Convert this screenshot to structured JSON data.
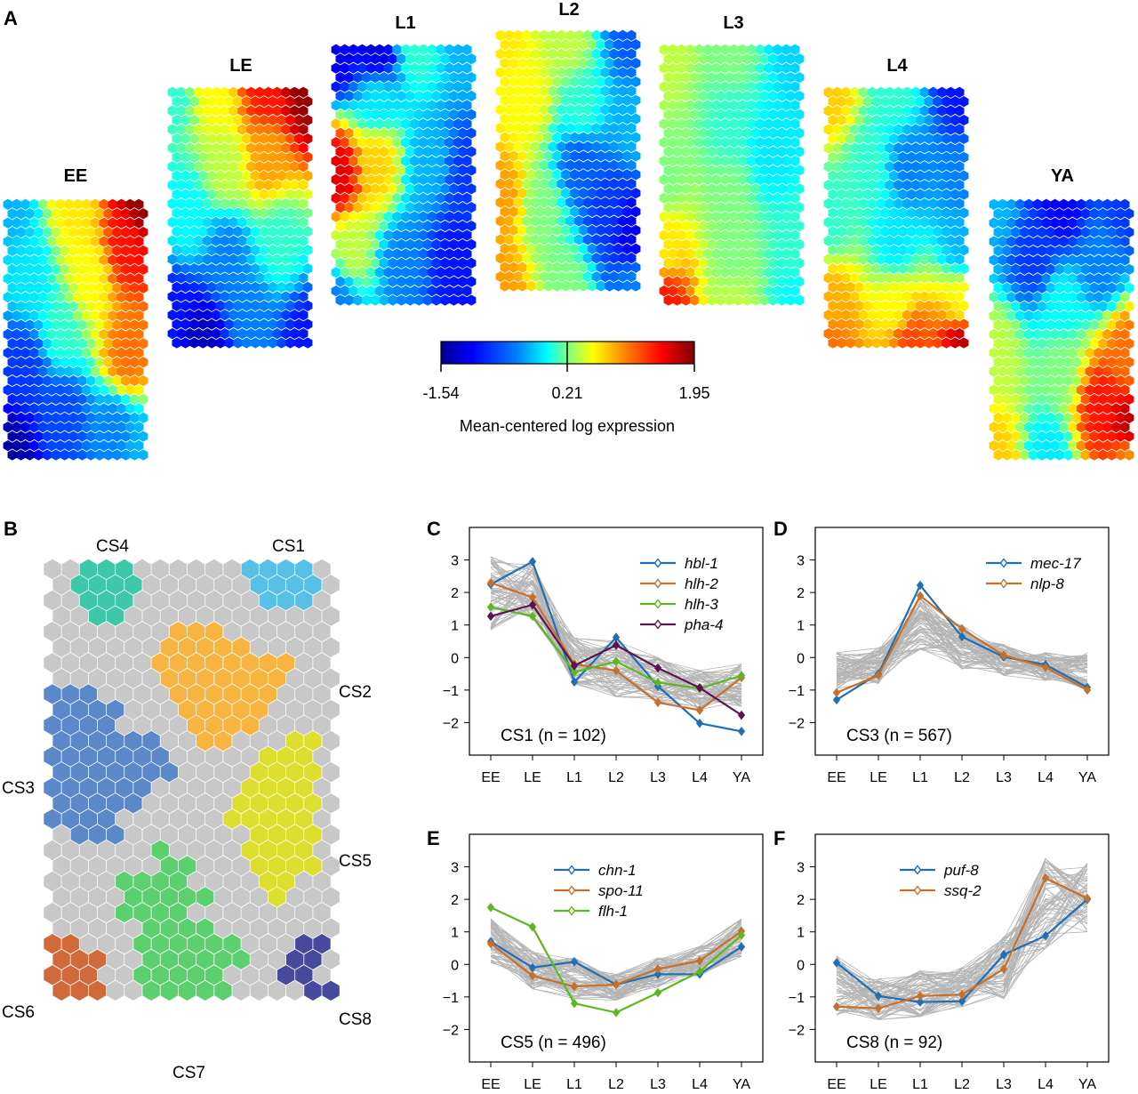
{
  "panels": {
    "A": "A",
    "B": "B",
    "C": "C",
    "D": "D",
    "E": "E",
    "F": "F"
  },
  "panel_a": {
    "stages": [
      "EE",
      "LE",
      "L1",
      "L2",
      "L3",
      "L4",
      "YA"
    ],
    "colorbar": {
      "min_label": "-1.54",
      "mid_label": "0.21",
      "max_label": "1.95",
      "min": -1.54,
      "mid": 0.21,
      "max": 1.95,
      "title": "Mean-centered log expression",
      "colormap": [
        "#00008f",
        "#0000ff",
        "#0080ff",
        "#00ffff",
        "#80ff80",
        "#ffff00",
        "#ff8000",
        "#ff0000",
        "#800000"
      ]
    }
  },
  "panel_b": {
    "labels": {
      "CS1": "CS1",
      "CS2": "CS2",
      "CS3": "CS3",
      "CS4": "CS4",
      "CS5": "CS5",
      "CS6": "CS6",
      "CS7": "CS7",
      "CS8": "CS8"
    },
    "colors": {
      "background": "#c8c8c8",
      "CS1": "#58c0e6",
      "CS2": "#f8b440",
      "CS3": "#5b88c8",
      "CS4": "#3ec8a8",
      "CS5": "#dede30",
      "CS6": "#d06a3a",
      "CS7": "#5cd06e",
      "CS8": "#464a9c"
    }
  },
  "chart_data": [
    {
      "id": "C",
      "type": "line",
      "categories": [
        "EE",
        "LE",
        "L1",
        "L2",
        "L3",
        "L4",
        "YA"
      ],
      "ylim": [
        -3,
        4
      ],
      "yticks": [
        -2,
        -1,
        0,
        1,
        2,
        3
      ],
      "annotation": "CS1 (n = 102)",
      "legend_position": "top-right",
      "background_band": {
        "upper": [
          3.1,
          2.9,
          0.6,
          0.5,
          0.0,
          -0.4,
          -0.2
        ],
        "lower": [
          0.85,
          1.2,
          -0.8,
          -1.2,
          -1.35,
          -1.6,
          -1.5
        ]
      },
      "series": [
        {
          "name": "hbl-1",
          "color": "#1f6fb4",
          "values": [
            2.25,
            2.95,
            -0.75,
            0.62,
            -0.88,
            -2.02,
            -2.27
          ]
        },
        {
          "name": "hlh-2",
          "color": "#c8702a",
          "values": [
            2.3,
            1.85,
            -0.2,
            -0.4,
            -1.38,
            -1.62,
            -0.62
          ]
        },
        {
          "name": "hlh-3",
          "color": "#5cb820",
          "values": [
            1.55,
            1.27,
            -0.45,
            -0.12,
            -0.77,
            -0.95,
            -0.55
          ]
        },
        {
          "name": "pha-4",
          "color": "#5a1450",
          "values": [
            1.27,
            1.62,
            -0.25,
            0.38,
            -0.32,
            -0.93,
            -1.77
          ]
        }
      ]
    },
    {
      "id": "D",
      "type": "line",
      "categories": [
        "EE",
        "LE",
        "L1",
        "L2",
        "L3",
        "L4",
        "YA"
      ],
      "ylim": [
        -3,
        4
      ],
      "yticks": [
        -2,
        -1,
        0,
        1,
        2,
        3
      ],
      "annotation": "CS3 (n = 567)",
      "legend_position": "top-right",
      "background_band": {
        "upper": [
          0.15,
          0.3,
          1.85,
          1.0,
          0.4,
          0.15,
          0.15
        ],
        "lower": [
          -1.0,
          -0.8,
          0.25,
          -0.35,
          -0.55,
          -0.7,
          -1.0
        ]
      },
      "series": [
        {
          "name": "mec-17",
          "color": "#1f6fb4",
          "values": [
            -1.3,
            -0.5,
            2.22,
            0.64,
            0.02,
            -0.22,
            -0.92
          ]
        },
        {
          "name": "nlp-8",
          "color": "#c8702a",
          "values": [
            -1.08,
            -0.55,
            1.9,
            0.88,
            0.07,
            -0.3,
            -1.0
          ]
        }
      ]
    },
    {
      "id": "E",
      "type": "line",
      "categories": [
        "EE",
        "LE",
        "L1",
        "L2",
        "L3",
        "L4",
        "YA"
      ],
      "ylim": [
        -3,
        4
      ],
      "yticks": [
        -2,
        -1,
        0,
        1,
        2,
        3
      ],
      "annotation": "CS5 (n = 496)",
      "legend_position": "top-center",
      "background_band": {
        "upper": [
          1.4,
          0.4,
          0.2,
          -0.3,
          0.2,
          0.55,
          1.4
        ],
        "lower": [
          0.05,
          -0.75,
          -1.05,
          -1.1,
          -0.7,
          -0.35,
          0.25
        ]
      },
      "series": [
        {
          "name": "chn-1",
          "color": "#1f6fb4",
          "values": [
            0.7,
            -0.1,
            0.08,
            -0.62,
            -0.3,
            -0.3,
            0.54
          ]
        },
        {
          "name": "spo-11",
          "color": "#c8702a",
          "values": [
            0.64,
            -0.35,
            -0.68,
            -0.62,
            -0.14,
            0.11,
            1.02
          ]
        },
        {
          "name": "flh-1",
          "color": "#5cb820",
          "values": [
            1.75,
            1.15,
            -1.2,
            -1.48,
            -0.87,
            -0.22,
            0.9
          ]
        }
      ]
    },
    {
      "id": "F",
      "type": "line",
      "categories": [
        "EE",
        "LE",
        "L1",
        "L2",
        "L3",
        "L4",
        "YA"
      ],
      "ylim": [
        -3,
        4
      ],
      "yticks": [
        -2,
        -1,
        0,
        1,
        2,
        3
      ],
      "annotation": "CS8 (n = 92)",
      "legend_position": "top-center",
      "background_band": {
        "upper": [
          0.25,
          -0.45,
          -0.2,
          -0.1,
          0.85,
          3.25,
          3.1
        ],
        "lower": [
          -1.55,
          -1.7,
          -1.6,
          -1.3,
          -1.05,
          0.5,
          1.0
        ]
      },
      "series": [
        {
          "name": "puf-8",
          "color": "#1f6fb4",
          "values": [
            0.05,
            -0.97,
            -1.16,
            -1.13,
            0.3,
            0.88,
            2.0
          ]
        },
        {
          "name": "ssq-2",
          "color": "#c8702a",
          "values": [
            -1.3,
            -1.35,
            -0.97,
            -0.93,
            -0.14,
            2.65,
            2.03
          ]
        }
      ]
    }
  ]
}
